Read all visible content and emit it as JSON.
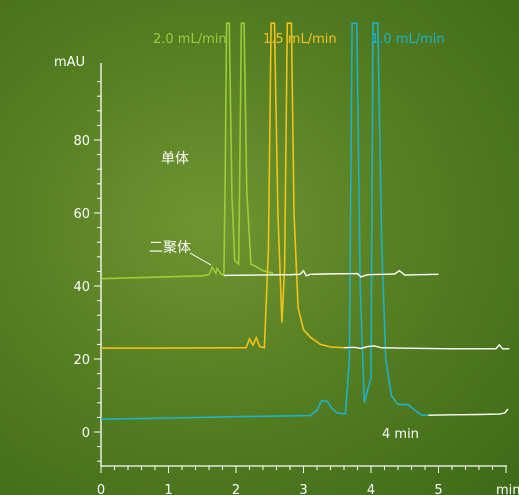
{
  "chart_data": {
    "type": "line",
    "xlabel": "min",
    "ylabel": "mAU",
    "xlim": [
      0,
      6
    ],
    "ylim": [
      -9,
      100
    ],
    "x_ticks": [
      0,
      1,
      2,
      3,
      4,
      5
    ],
    "y_ticks": [
      0,
      20,
      40,
      60,
      80
    ],
    "grid": false,
    "legend_position": "top",
    "series": [
      {
        "name": "2.0 mL/min",
        "color": "#9ccc3a",
        "baseline": [
          [
            0,
            42
          ],
          [
            0.8,
            42.4
          ],
          [
            1.5,
            42.8
          ],
          [
            1.6,
            43.1
          ],
          [
            1.65,
            45.2
          ],
          [
            1.7,
            43.5
          ],
          [
            1.72,
            44.8
          ],
          [
            1.78,
            43.3
          ],
          [
            1.82,
            42.9
          ]
        ]
      },
      {
        "name": "1.5 mL/min",
        "color": "#f2c21a",
        "baseline": [
          [
            0,
            23
          ],
          [
            1,
            23
          ],
          [
            2.15,
            23.1
          ],
          [
            2.2,
            25.5
          ],
          [
            2.25,
            23.8
          ],
          [
            2.3,
            25.8
          ],
          [
            2.35,
            23.4
          ],
          [
            2.42,
            23.1
          ]
        ]
      },
      {
        "name": "1.0 mL/min",
        "color": "#1fb1c5",
        "baseline": [
          [
            0,
            3.5
          ],
          [
            1,
            3.8
          ],
          [
            2,
            4.2
          ],
          [
            3.1,
            4.5
          ],
          [
            3.2,
            6
          ],
          [
            3.27,
            8.6
          ],
          [
            3.35,
            8.4
          ],
          [
            3.42,
            6.5
          ],
          [
            3.5,
            5.2
          ],
          [
            3.6,
            5
          ]
        ]
      },
      {
        "name": "white",
        "color": "#ffffff",
        "points": [
          [
            1.82,
            42.9
          ],
          [
            2.3,
            43
          ],
          [
            2.8,
            43.1
          ],
          [
            2.95,
            43.2
          ],
          [
            3.0,
            44.2
          ],
          [
            3.04,
            42.8
          ],
          [
            3.1,
            43.2
          ],
          [
            3.3,
            43.3
          ],
          [
            3.8,
            43.4
          ],
          [
            3.85,
            42.5
          ],
          [
            3.95,
            43.1
          ],
          [
            4.2,
            43.2
          ],
          [
            4.35,
            43.3
          ],
          [
            4.42,
            44.2
          ],
          [
            4.5,
            43
          ],
          [
            4.7,
            43.1
          ],
          [
            5.0,
            43.2
          ]
        ]
      }
    ],
    "annotations": [
      "单体",
      "二聚体",
      "4 min"
    ]
  },
  "labels": {
    "y_axis_unit": "mAU",
    "x_axis_unit": "min",
    "legend_2": "2.0 mL/min",
    "legend_15": "1.5 mL/min",
    "legend_1": "1.0 mL/min",
    "monomer": "单体",
    "dimer": "二聚体",
    "run_time": "4 min",
    "x_ticks": [
      "0",
      "1",
      "2",
      "3",
      "4",
      "5"
    ],
    "y_ticks": [
      "80",
      "60",
      "40",
      "20",
      "0"
    ]
  }
}
